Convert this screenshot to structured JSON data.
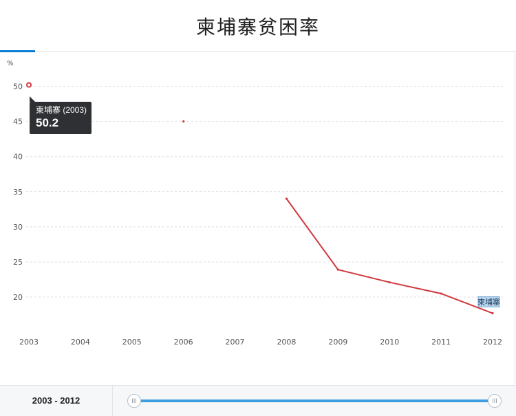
{
  "page_title": "柬埔寨贫困率",
  "chart_data": {
    "type": "line",
    "unit": "%",
    "categories": [
      "2003",
      "2004",
      "2005",
      "2006",
      "2007",
      "2008",
      "2009",
      "2010",
      "2011",
      "2012"
    ],
    "series": [
      {
        "name": "柬埔寨",
        "color": "#d0393e",
        "values": [
          50.2,
          null,
          null,
          45.0,
          null,
          34.0,
          23.9,
          22.1,
          20.5,
          17.7
        ]
      }
    ],
    "y_ticks": [
      20,
      25,
      30,
      35,
      40,
      45,
      50
    ],
    "ylim": [
      15.5,
      52.5
    ],
    "grid": true
  },
  "tooltip": {
    "label": "柬埔寨 (2003)",
    "value": "50.2"
  },
  "range_label": "2003 - 2012",
  "slider": {
    "handle_glyph": "III"
  }
}
